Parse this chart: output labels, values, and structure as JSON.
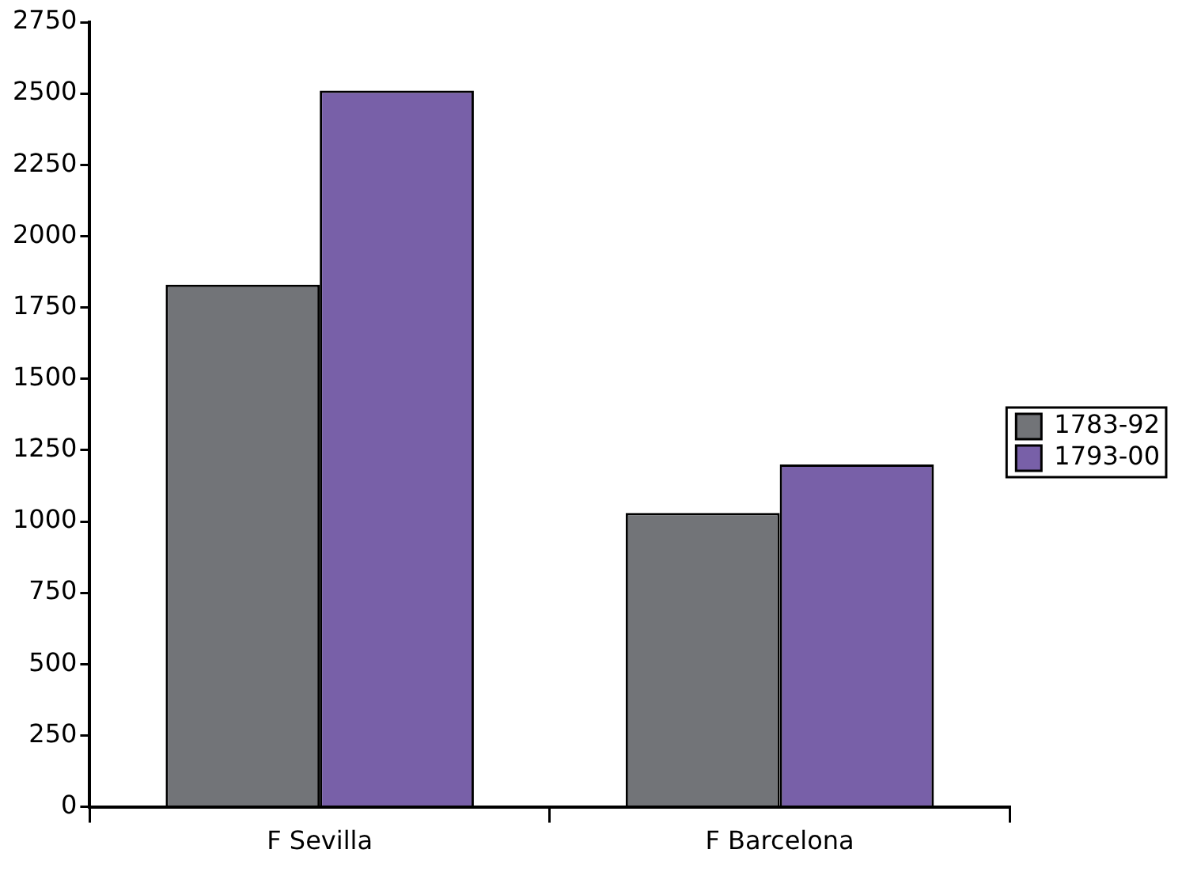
{
  "chart_data": {
    "type": "bar",
    "categories": [
      "F Sevilla",
      "F Barcelona"
    ],
    "series": [
      {
        "name": "1783-92",
        "color": "#727478",
        "values": [
          1830,
          1030
        ]
      },
      {
        "name": "1793-00",
        "color": "#7860a8",
        "values": [
          2510,
          1200
        ]
      }
    ],
    "ylim": [
      0,
      2750
    ],
    "yticks": [
      0,
      250,
      500,
      750,
      1000,
      1250,
      1500,
      1750,
      2000,
      2250,
      2500,
      2750
    ],
    "grid": false,
    "legend": "right"
  }
}
